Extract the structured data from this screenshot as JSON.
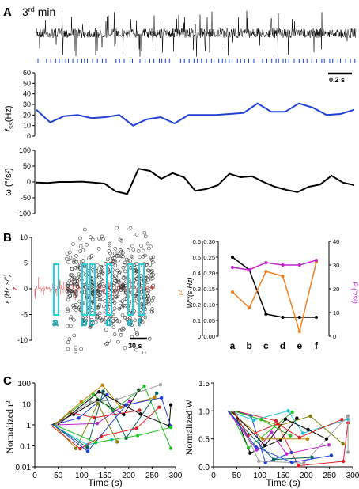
{
  "panels": {
    "A": "A",
    "B": "B",
    "C": "C"
  },
  "colors": {
    "blue": "#1f3fd6",
    "black": "#000000",
    "red": "#e02020",
    "cyan": "#22d3e6",
    "orange": "#f08020",
    "magenta": "#c020d0"
  },
  "chart_data": [
    {
      "id": "A-trace",
      "type": "line",
      "title": "3rd min",
      "title_super": "rd",
      "scalebar_label": "0.2 s",
      "raster_description": "spike raster (blue ticks)"
    },
    {
      "id": "A-fss",
      "type": "line",
      "ylabel": "f",
      "ylabel_sub": "SS",
      "ylabel_unit": "(Hz)",
      "ylim": [
        0,
        60
      ],
      "yticks": [
        0,
        10,
        20,
        30,
        40,
        50,
        60
      ],
      "series": [
        {
          "color": "#1f3fd6",
          "values": [
            25,
            13,
            19,
            20,
            17,
            18,
            20,
            10,
            16,
            18,
            12,
            20,
            20,
            20,
            21,
            22,
            31,
            23,
            23,
            31,
            27,
            20,
            21,
            25
          ]
        }
      ]
    },
    {
      "id": "A-omega",
      "type": "line",
      "ylabel": "ω (°/s²)",
      "ylim": [
        -100,
        100
      ],
      "yticks": [
        -100,
        -50,
        0,
        50,
        100
      ],
      "series": [
        {
          "color": "#000000",
          "values": [
            -2,
            -3,
            0,
            0,
            1,
            -2,
            -5,
            -30,
            -38,
            42,
            35,
            10,
            28,
            15,
            -28,
            -22,
            -10,
            26,
            15,
            18,
            0,
            -15,
            -25,
            -32,
            -15,
            -8,
            20,
            -2,
            -10
          ]
        }
      ]
    },
    {
      "id": "B-left",
      "type": "scatter",
      "ylabel_left": "ε (Hz·s/°)",
      "ylabel_left2": "z",
      "ylim": [
        -10,
        10
      ],
      "yticks": [
        -10,
        -5,
        0,
        5,
        10
      ],
      "windows": [
        "a",
        "b",
        "c",
        "d",
        "e",
        "f"
      ],
      "scalebar_label": "30 s"
    },
    {
      "id": "B-right",
      "type": "line",
      "categories": [
        "a",
        "b",
        "c",
        "d",
        "e",
        "f"
      ],
      "ylabel_left": "W°/(s·Hz)",
      "ylabel_r2": "r²",
      "ylabel_right": "P (°/s²)",
      "ylim_left": [
        0,
        0.3
      ],
      "yticks_left": [
        "0.00",
        "0.05",
        "0.10",
        "0.15",
        "0.20",
        "0.25",
        "0.30"
      ],
      "ylim_r2": [
        0,
        0.6
      ],
      "yticks_r2": [
        "0",
        "0.1",
        "0.2",
        "0.3",
        "0.4",
        "0.5",
        "0.6"
      ],
      "ylim_right": [
        0,
        40
      ],
      "yticks_right": [
        "0",
        "10",
        "20",
        "30",
        "40"
      ],
      "series": [
        {
          "name": "W",
          "axis": "left",
          "color": "#000000",
          "values": [
            0.25,
            0.21,
            0.07,
            0.06,
            0.06,
            0.06
          ]
        },
        {
          "name": "r²",
          "axis": "r2",
          "color": "#f08020",
          "values": [
            0.28,
            0.18,
            0.41,
            0.38,
            0.03,
            0.47
          ]
        },
        {
          "name": "P",
          "axis": "right",
          "color": "#c020d0",
          "values": [
            29,
            28,
            31,
            30,
            30,
            32
          ]
        }
      ]
    },
    {
      "id": "C-left",
      "type": "line",
      "ylabel": "Normalized r²",
      "xlabel": "Time (s)",
      "yscale": "log",
      "ylim": [
        0.01,
        100
      ],
      "yticks": [
        "0.01",
        "0.1",
        "1",
        "10",
        "100"
      ],
      "xlim": [
        0,
        300
      ],
      "xticks": [
        "0",
        "50",
        "100",
        "150",
        "200",
        "250",
        "300"
      ]
    },
    {
      "id": "C-right",
      "type": "line",
      "ylabel": "Normalized W",
      "xlabel": "Time (s)",
      "ylim": [
        0,
        1.5
      ],
      "yticks": [
        "0.0",
        "0.5",
        "1.0",
        "1.5"
      ],
      "xlim": [
        0,
        300
      ],
      "xticks": [
        "0",
        "50",
        "100",
        "150",
        "200",
        "250",
        "300"
      ]
    }
  ]
}
